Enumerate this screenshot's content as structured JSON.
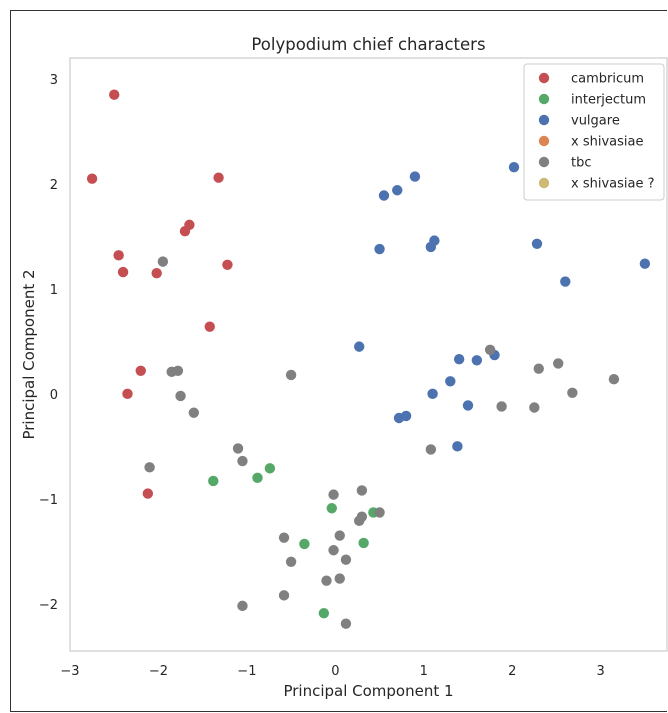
{
  "chart_data": {
    "type": "scatter",
    "title": "Polypodium chief characters",
    "xlabel": "Principal Component 1",
    "ylabel": "Principal Component 2",
    "xlim": [
      -3,
      3.75
    ],
    "ylim": [
      -2.45,
      3.2
    ],
    "xticks": [
      -3,
      -2,
      -1,
      0,
      1,
      2,
      3
    ],
    "yticks": [
      -2,
      -1,
      0,
      1,
      2,
      3
    ],
    "grid": false,
    "legend_position": "top-right",
    "series": [
      {
        "name": "cambricum",
        "color": "#c44e52",
        "points": [
          [
            -2.5,
            2.85
          ],
          [
            -2.75,
            2.05
          ],
          [
            -1.32,
            2.06
          ],
          [
            -1.65,
            1.61
          ],
          [
            -1.7,
            1.55
          ],
          [
            -2.45,
            1.32
          ],
          [
            -2.4,
            1.16
          ],
          [
            -2.02,
            1.15
          ],
          [
            -1.22,
            1.23
          ],
          [
            -1.42,
            0.64
          ],
          [
            -2.2,
            0.22
          ],
          [
            -2.35,
            0.0
          ],
          [
            -2.12,
            -0.95
          ]
        ]
      },
      {
        "name": "interjectum",
        "color": "#55a868",
        "points": [
          [
            -1.38,
            -0.83
          ],
          [
            -0.88,
            -0.8
          ],
          [
            -0.74,
            -0.71
          ],
          [
            -0.04,
            -1.09
          ],
          [
            0.43,
            -1.13
          ],
          [
            -0.35,
            -1.43
          ],
          [
            0.32,
            -1.42
          ],
          [
            -0.13,
            -2.09
          ]
        ]
      },
      {
        "name": "vulgare",
        "color": "#4c72b0",
        "points": [
          [
            0.55,
            1.89
          ],
          [
            0.7,
            1.94
          ],
          [
            0.9,
            2.07
          ],
          [
            2.02,
            2.16
          ],
          [
            0.5,
            1.38
          ],
          [
            1.08,
            1.4
          ],
          [
            1.12,
            1.46
          ],
          [
            2.28,
            1.43
          ],
          [
            2.6,
            1.07
          ],
          [
            3.5,
            1.24
          ],
          [
            0.27,
            0.45
          ],
          [
            1.4,
            0.33
          ],
          [
            1.6,
            0.32
          ],
          [
            1.8,
            0.37
          ],
          [
            1.3,
            0.12
          ],
          [
            1.1,
            0.0
          ],
          [
            1.5,
            -0.11
          ],
          [
            0.72,
            -0.23
          ],
          [
            0.8,
            -0.21
          ],
          [
            1.38,
            -0.5
          ]
        ]
      },
      {
        "name": "x shivasiae",
        "color": "#dd8452",
        "points": []
      },
      {
        "name": "tbc",
        "color": "#808080",
        "points": [
          [
            -1.95,
            1.26
          ],
          [
            -1.85,
            0.21
          ],
          [
            -1.78,
            0.22
          ],
          [
            -1.75,
            -0.02
          ],
          [
            -1.6,
            -0.18
          ],
          [
            -0.5,
            0.18
          ],
          [
            -1.1,
            -0.52
          ],
          [
            -1.05,
            -0.64
          ],
          [
            -2.1,
            -0.7
          ],
          [
            -0.02,
            -0.96
          ],
          [
            0.3,
            -0.92
          ],
          [
            0.3,
            -1.17
          ],
          [
            0.27,
            -1.21
          ],
          [
            0.5,
            -1.13
          ],
          [
            -0.58,
            -1.37
          ],
          [
            0.05,
            -1.35
          ],
          [
            -0.02,
            -1.49
          ],
          [
            0.12,
            -1.58
          ],
          [
            -0.5,
            -1.6
          ],
          [
            -0.1,
            -1.78
          ],
          [
            0.05,
            -1.76
          ],
          [
            -0.58,
            -1.92
          ],
          [
            -1.05,
            -2.02
          ],
          [
            0.12,
            -2.19
          ],
          [
            1.75,
            0.42
          ],
          [
            2.52,
            0.29
          ],
          [
            2.3,
            0.24
          ],
          [
            3.15,
            0.14
          ],
          [
            2.68,
            0.01
          ],
          [
            1.88,
            -0.12
          ],
          [
            2.25,
            -0.13
          ],
          [
            1.08,
            -0.53
          ]
        ]
      },
      {
        "name": "x shivasiae ?",
        "color": "#ccb974",
        "points": []
      }
    ]
  }
}
